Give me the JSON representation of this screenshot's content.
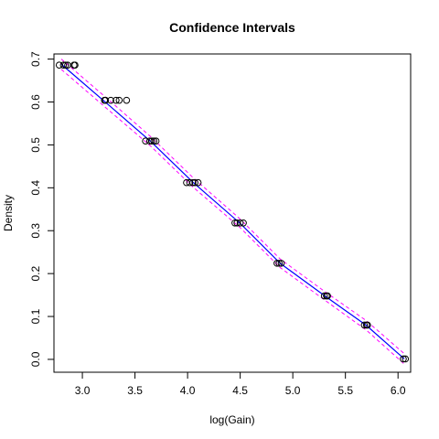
{
  "chart_data": {
    "type": "scatter",
    "title": "Confidence Intervals",
    "xlabel": "log(Gain)",
    "ylabel": "Density",
    "xlim": [
      2.73,
      6.12
    ],
    "ylim": [
      -0.03,
      0.712
    ],
    "x_ticks": [
      3.0,
      3.5,
      4.0,
      4.5,
      5.0,
      5.5,
      6.0
    ],
    "x_tick_labels": [
      "3.0",
      "3.5",
      "4.0",
      "4.5",
      "5.0",
      "5.5",
      "6.0"
    ],
    "y_ticks": [
      0.0,
      0.1,
      0.2,
      0.3,
      0.4,
      0.5,
      0.6,
      0.7
    ],
    "y_tick_labels": [
      "0.0",
      "0.1",
      "0.2",
      "0.3",
      "0.4",
      "0.5",
      "0.6",
      "0.7"
    ],
    "grid": false,
    "legend": "none",
    "colors": {
      "points": "#000000",
      "fit_line": "#0000ff",
      "interval_lines": "#ff00ff",
      "axes": "#000000"
    },
    "points": [
      {
        "x": 2.78,
        "y": 0.686
      },
      {
        "x": 2.82,
        "y": 0.686
      },
      {
        "x": 2.84,
        "y": 0.686
      },
      {
        "x": 2.86,
        "y": 0.686
      },
      {
        "x": 2.92,
        "y": 0.686
      },
      {
        "x": 2.93,
        "y": 0.686
      },
      {
        "x": 3.21,
        "y": 0.604
      },
      {
        "x": 3.22,
        "y": 0.604
      },
      {
        "x": 3.27,
        "y": 0.604
      },
      {
        "x": 3.32,
        "y": 0.604
      },
      {
        "x": 3.35,
        "y": 0.604
      },
      {
        "x": 3.42,
        "y": 0.604
      },
      {
        "x": 3.6,
        "y": 0.509
      },
      {
        "x": 3.64,
        "y": 0.509
      },
      {
        "x": 3.66,
        "y": 0.509
      },
      {
        "x": 3.68,
        "y": 0.509
      },
      {
        "x": 3.7,
        "y": 0.509
      },
      {
        "x": 3.99,
        "y": 0.412
      },
      {
        "x": 4.02,
        "y": 0.412
      },
      {
        "x": 4.05,
        "y": 0.412
      },
      {
        "x": 4.07,
        "y": 0.412
      },
      {
        "x": 4.1,
        "y": 0.412
      },
      {
        "x": 4.45,
        "y": 0.318
      },
      {
        "x": 4.47,
        "y": 0.318
      },
      {
        "x": 4.5,
        "y": 0.318
      },
      {
        "x": 4.53,
        "y": 0.318
      },
      {
        "x": 4.85,
        "y": 0.224
      },
      {
        "x": 4.87,
        "y": 0.224
      },
      {
        "x": 4.89,
        "y": 0.224
      },
      {
        "x": 5.3,
        "y": 0.148
      },
      {
        "x": 5.32,
        "y": 0.148
      },
      {
        "x": 5.33,
        "y": 0.148
      },
      {
        "x": 5.68,
        "y": 0.08
      },
      {
        "x": 5.7,
        "y": 0.08
      },
      {
        "x": 5.71,
        "y": 0.08
      },
      {
        "x": 6.05,
        "y": 0.001
      },
      {
        "x": 6.07,
        "y": 0.001
      }
    ],
    "fit_line": [
      {
        "x": 2.8,
        "y": 0.688
      },
      {
        "x": 3.25,
        "y": 0.593
      },
      {
        "x": 3.65,
        "y": 0.508
      },
      {
        "x": 4.05,
        "y": 0.413
      },
      {
        "x": 4.5,
        "y": 0.317
      },
      {
        "x": 4.88,
        "y": 0.224
      },
      {
        "x": 5.31,
        "y": 0.147
      },
      {
        "x": 5.7,
        "y": 0.079
      },
      {
        "x": 6.06,
        "y": 0.001
      }
    ],
    "upper_interval": [
      {
        "x": 2.8,
        "y": 0.7
      },
      {
        "x": 3.25,
        "y": 0.605
      },
      {
        "x": 3.65,
        "y": 0.519
      },
      {
        "x": 4.05,
        "y": 0.424
      },
      {
        "x": 4.5,
        "y": 0.327
      },
      {
        "x": 4.88,
        "y": 0.234
      },
      {
        "x": 5.31,
        "y": 0.157
      },
      {
        "x": 5.7,
        "y": 0.09
      },
      {
        "x": 6.06,
        "y": 0.013
      }
    ],
    "lower_interval": [
      {
        "x": 2.8,
        "y": 0.676
      },
      {
        "x": 3.25,
        "y": 0.581
      },
      {
        "x": 3.65,
        "y": 0.497
      },
      {
        "x": 4.05,
        "y": 0.402
      },
      {
        "x": 4.5,
        "y": 0.307
      },
      {
        "x": 4.88,
        "y": 0.214
      },
      {
        "x": 5.31,
        "y": 0.137
      },
      {
        "x": 5.7,
        "y": 0.068
      },
      {
        "x": 6.06,
        "y": -0.011
      }
    ]
  }
}
